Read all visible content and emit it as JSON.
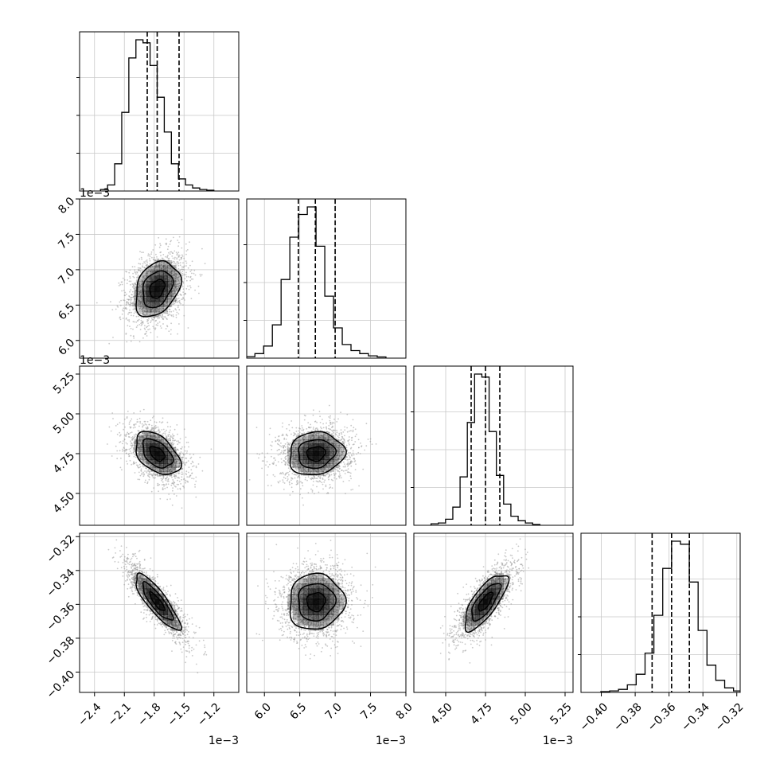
{
  "chart_data": {
    "type": "corner",
    "parameters": [
      {
        "range": [
          -2.55,
          -0.95
        ],
        "ticks": [
          -2.4,
          -2.1,
          -1.8,
          -1.5,
          -1.2
        ],
        "tick_labels": [
          "−2.4",
          "−2.1",
          "−1.8",
          "−1.5",
          "−1.2"
        ],
        "scale_label": "1e−3",
        "quantiles": [
          -1.87,
          -1.77,
          -1.55
        ],
        "mean": -1.77,
        "sd": 0.15
      },
      {
        "range": [
          5.75,
          8.0
        ],
        "ticks": [
          6.0,
          6.5,
          7.0,
          7.5,
          8.0
        ],
        "tick_labels": [
          "6.0",
          "6.5",
          "7.0",
          "7.5",
          "8.0"
        ],
        "scale_label": "1e−3",
        "quantiles": [
          6.48,
          6.72,
          7.0
        ],
        "mean": 6.73,
        "sd": 0.26
      },
      {
        "range": [
          4.3,
          5.3
        ],
        "ticks": [
          4.5,
          4.75,
          5.0,
          5.25
        ],
        "tick_labels": [
          "4.50",
          "4.75",
          "5.00",
          "5.25"
        ],
        "scale_label": "1e−3",
        "quantiles": [
          4.66,
          4.75,
          4.84
        ],
        "mean": 4.75,
        "sd": 0.09
      },
      {
        "range": [
          -0.412,
          -0.318
        ],
        "ticks": [
          -0.4,
          -0.38,
          -0.36,
          -0.34,
          -0.32
        ],
        "tick_labels": [
          "−0.40",
          "−0.38",
          "−0.36",
          "−0.34",
          "−0.32"
        ],
        "scale_label": "",
        "quantiles": [
          -0.37,
          -0.3585,
          -0.348
        ],
        "mean": -0.3585,
        "sd": 0.011
      }
    ],
    "correlations": [
      {
        "i": 1,
        "j": 0,
        "rho": 0.3
      },
      {
        "i": 2,
        "j": 0,
        "rho": -0.45
      },
      {
        "i": 2,
        "j": 1,
        "rho": 0.1
      },
      {
        "i": 3,
        "j": 0,
        "rho": -0.85
      },
      {
        "i": 3,
        "j": 1,
        "rho": 0.05
      },
      {
        "i": 3,
        "j": 2,
        "rho": 0.75
      }
    ],
    "histograms": {
      "0": [
        0.01,
        0.04,
        0.18,
        0.52,
        0.88,
        1.0,
        0.98,
        0.83,
        0.62,
        0.39,
        0.18,
        0.08,
        0.04,
        0.02,
        0.01,
        0.005
      ],
      "1": [
        0.01,
        0.03,
        0.08,
        0.22,
        0.52,
        0.8,
        0.95,
        1.0,
        0.74,
        0.41,
        0.2,
        0.09,
        0.05,
        0.03,
        0.015,
        0.008
      ],
      "2": [
        0.01,
        0.015,
        0.04,
        0.12,
        0.32,
        0.68,
        1.0,
        0.98,
        0.62,
        0.33,
        0.14,
        0.06,
        0.03,
        0.015,
        0.005
      ],
      "3": [
        0.005,
        0.01,
        0.02,
        0.05,
        0.12,
        0.26,
        0.51,
        0.82,
        1.0,
        0.98,
        0.73,
        0.41,
        0.18,
        0.08,
        0.03,
        0.01
      ]
    },
    "grid": true,
    "quantile_lines": "dashed",
    "contour_levels": [
      0.5,
      1.0,
      1.5
    ],
    "samples_per_panel": 1800,
    "colors": {
      "points": "#9a9a9a",
      "lines": "#000000",
      "grid": "#c8c8c8",
      "shading": "#000000"
    }
  }
}
